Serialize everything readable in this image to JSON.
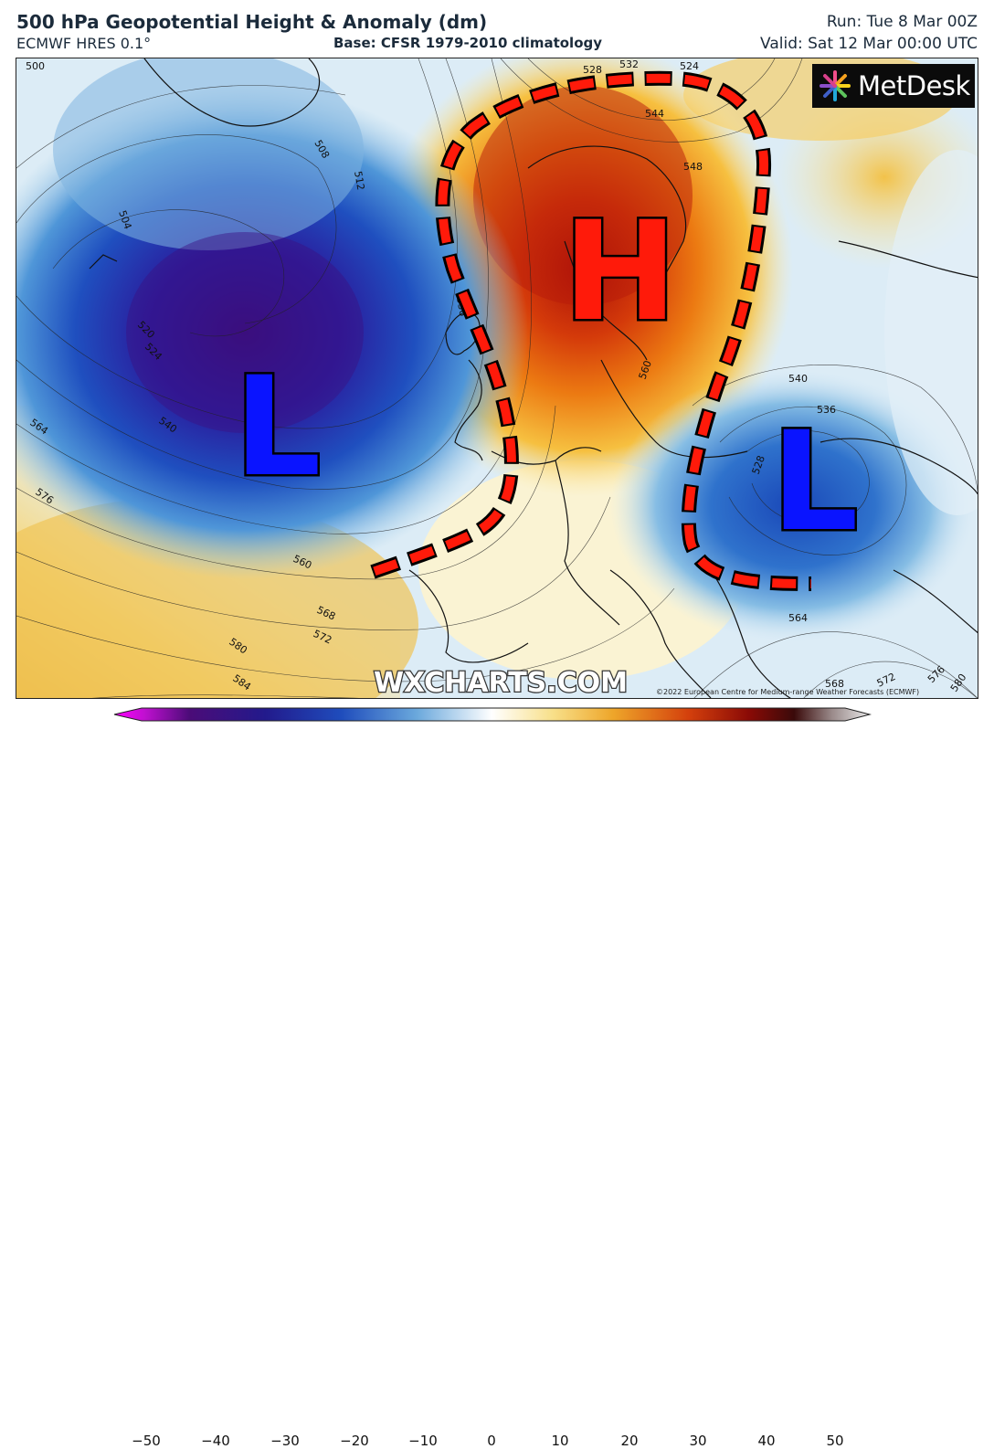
{
  "header": {
    "title": "500 hPa Geopotential Height & Anomaly (dm)",
    "model": "ECMWF HRES 0.1°",
    "base": "Base: CFSR 1979-2010 climatology",
    "run": "Run: Tue 8 Mar 00Z",
    "valid": "Valid: Sat 12 Mar 00:00 UTC"
  },
  "branding": {
    "logo_text": "MetDesk",
    "watermark": "WXCHARTS.COM",
    "credit": "©2022 European Centre for Medium-range Weather Forecasts (ECMWF)"
  },
  "map": {
    "pressure_systems": [
      {
        "label": "L",
        "color": "#0a14ff"
      },
      {
        "label": "H",
        "color": "#ff1a0a"
      },
      {
        "label": "L",
        "color": "#0a14ff"
      }
    ],
    "contour_labels": [
      "500",
      "504",
      "508",
      "512",
      "520",
      "524",
      "536",
      "540",
      "560",
      "564",
      "568",
      "572",
      "576",
      "580",
      "584",
      "528",
      "532",
      "544",
      "548",
      "524",
      "536",
      "540",
      "528",
      "560",
      "564",
      "568",
      "572",
      "576",
      "580"
    ]
  },
  "colorbar": {
    "ticks": [
      "−50",
      "−40",
      "−30",
      "−20",
      "−10",
      "0",
      "10",
      "20",
      "30",
      "40",
      "50"
    ],
    "colors": {
      "min": "#ff00ff",
      "neg": "#1a1a80",
      "zero": "#ffffff",
      "pos": "#e87a10",
      "max": "#d8d8d8"
    }
  }
}
